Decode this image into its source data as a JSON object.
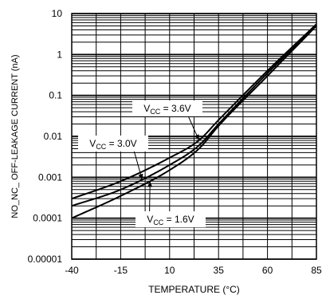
{
  "chart_data": {
    "type": "line",
    "xlabel": "TEMPERATURE (°C)",
    "ylabel": "NO_NC_ OFF-LEAKAGE CURRENT (nA)",
    "x_scale": "linear",
    "y_scale": "log",
    "xlim": [
      -40,
      85
    ],
    "ylim": [
      1e-05,
      10
    ],
    "x_ticks": [
      -40,
      -15,
      10,
      35,
      60,
      85
    ],
    "x_tick_labels": [
      "-40",
      "-15",
      "10",
      "35",
      "60",
      "85"
    ],
    "y_ticks": [
      1e-05,
      0.0001,
      0.001,
      0.01,
      0.1,
      1,
      10
    ],
    "y_tick_labels": [
      "0.00001",
      "0.0001",
      "0.001",
      "0.01",
      "0.1",
      "1",
      "10"
    ],
    "grid": true,
    "series": [
      {
        "name": "VCC = 3.6V",
        "x": [
          -40,
          -15,
          10,
          25,
          35,
          60,
          85
        ],
        "y": [
          0.0003,
          0.0008,
          0.003,
          0.008,
          0.025,
          0.4,
          5.5
        ]
      },
      {
        "name": "VCC = 3.0V",
        "x": [
          -40,
          -15,
          10,
          25,
          35,
          60,
          85
        ],
        "y": [
          0.0002,
          0.0005,
          0.002,
          0.006,
          0.02,
          0.35,
          5.2
        ]
      },
      {
        "name": "VCC = 1.6V",
        "x": [
          -40,
          -15,
          10,
          25,
          35,
          60,
          85
        ],
        "y": [
          0.0001,
          0.00035,
          0.0015,
          0.005,
          0.018,
          0.3,
          5.0
        ]
      }
    ],
    "annotations": {
      "vcc36": {
        "prefix": "V",
        "sub": "CC",
        "suffix": " = 3.6V"
      },
      "vcc30": {
        "prefix": "V",
        "sub": "CC",
        "suffix": " = 3.0V"
      },
      "vcc16": {
        "prefix": "V",
        "sub": "CC",
        "suffix": " = 1.6V"
      }
    }
  }
}
